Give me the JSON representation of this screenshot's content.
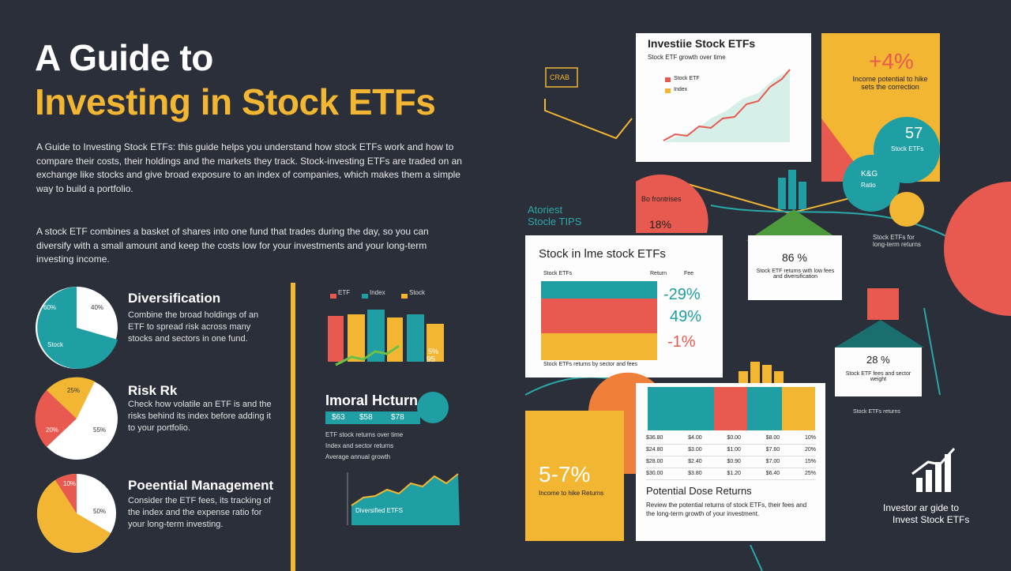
{
  "title": {
    "line1": "A Guide to",
    "line2": "Investing in Stock ETFs"
  },
  "intro": [
    "A Guide to Investing Stock ETFs: this guide helps you understand how stock ETFs work and how to compare their costs, their holdings and the markets they track. Stock-investing ETFs are traded on an exchange like stocks and give broad exposure to an index of companies, which makes them a simple way to build a portfolio.",
    "A stock ETF combines a basket of shares into one fund that trades during the day, so you can diversify with a small amount and keep the costs low for your investments and your long-term investing income."
  ],
  "sections": [
    {
      "heading": "Diversification",
      "text": "Combine the broad holdings of an ETF to spread risk across many stocks and sectors in one fund.",
      "pie_labels": [
        "60%",
        "40%",
        "Stock"
      ]
    },
    {
      "heading": "Risk Rk",
      "text": "Check how volatile an ETF is and the risks behind its index before adding it to your portfolio.",
      "pie_labels": [
        "25%",
        "55%",
        "20%"
      ]
    },
    {
      "heading": "Poeential Management",
      "text": "Consider the ETF fees, its tracking of the index and the expense ratio for your long-term investing.",
      "pie_labels": [
        "10%",
        "50%"
      ]
    }
  ],
  "mid": {
    "legend": [
      "ETF",
      "Index",
      "Stock"
    ],
    "bar_note": [
      "5%",
      "95"
    ],
    "returns_title": "Imoral Hcturn",
    "returns_strip": [
      "$63",
      "$58",
      "$78"
    ],
    "returns_lines": [
      "ETF stock returns over time",
      "Index and sector returns",
      "Average annual growth"
    ],
    "area_label": "Diversified ETFS"
  },
  "right": {
    "crab": "CRAB",
    "chart_card_title": "Investiie Stock ETFs",
    "chart_card_sub": "Stock ETF growth over time",
    "chart_legend": [
      "Stock ETF",
      "Index"
    ],
    "yellow_big": "+4%",
    "yellow_text": "Income potential to hike sets the correction",
    "circle_big": "57",
    "circle_text": "Stock ETFs",
    "circle2": "K&G",
    "circle2_sub": "Ratio",
    "side_note": "Stock ETFs for long-term returns",
    "tips": [
      "Atoriest",
      "Stocle TIPS"
    ],
    "semi_title": "Bo frontrises",
    "semi_value": "18%",
    "table_card_title": "Stock in lme stock ETFs",
    "table_head": [
      "Stock ETFs",
      "Return",
      "Fee"
    ],
    "table_big": [
      "-29%",
      "49%",
      "-1%"
    ],
    "table_foot": "Stock ETFs returns by sector and fees",
    "box1_value": "86 %",
    "box1_text": "Stock ETF returns with low fees and diversification",
    "box2_value": "28 %",
    "box2_text": "Stock ETF fees and sector weight",
    "small_note": "Stock ETFs returns",
    "yellow2_big": "5-7%",
    "yellow2_text": "Income to hike Returns",
    "table2_rows": [
      [
        "$36.80",
        "$4.00",
        "$0.00",
        "$8.00",
        "10%"
      ],
      [
        "$24.80",
        "$3.00",
        "$1.00",
        "$7.60",
        "20%"
      ],
      [
        "$28.00",
        "$2.40",
        "$0.90",
        "$7.00",
        "15%"
      ],
      [
        "$30.00",
        "$3.80",
        "$1.20",
        "$6.40",
        "25%"
      ]
    ],
    "returns_card_title": "Potential Dose Returns",
    "returns_card_text": "Review the potential returns of stock ETFs, their fees and the long-term growth of your investment.",
    "footer": [
      "Investor ar gide to",
      "Invest Stock ETFs"
    ]
  }
}
